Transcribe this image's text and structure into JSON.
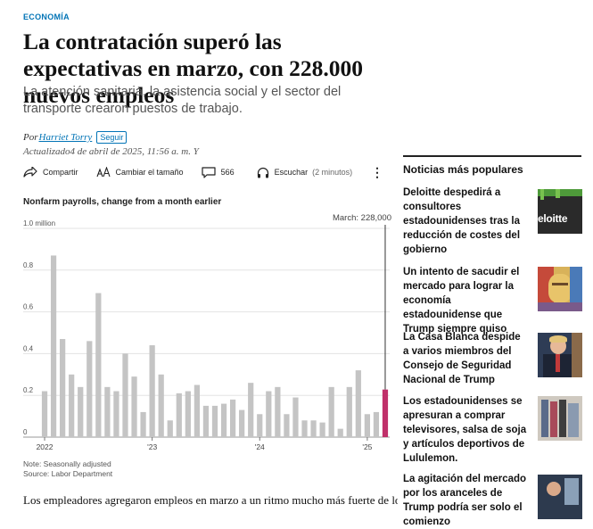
{
  "article": {
    "section": "ECONOMÍA",
    "headline": "La contratación superó las expectativas en marzo, con 228.000 nuevos empleos",
    "dek": "La atención sanitaria, la asistencia social y el sector del transporte crearon puestos de trabajo.",
    "byline_prefix": "Por",
    "author": "Harriet Torry",
    "follow_label": "Seguir",
    "updated": "Actualizado4 de abril de 2025, 11:56 a. m. Y",
    "body_first_line": "Los empleadores agregaron empleos en marzo a un ritmo mucho más fuerte de lo"
  },
  "toolbar": {
    "share_label": "Compartir",
    "text_size_label": "Cambiar el tamaño",
    "comment_count": "566",
    "listen_label": "Escuchar",
    "listen_duration": "(2 minutos)"
  },
  "chart_title": "Nonfarm payrolls, change from a month earlier",
  "chart_note": "Note: Seasonally adjusted",
  "chart_source": "Source: Labor Department",
  "chart_data": {
    "type": "bar",
    "title": "Nonfarm payrolls, change from a month earlier",
    "y_unit_label": "1.0 million",
    "ylim": [
      0,
      1.0
    ],
    "yticks": [
      0,
      0.2,
      0.4,
      0.6,
      0.8,
      1.0
    ],
    "ytick_labels": [
      "0",
      "0.2",
      "0.4",
      "0.6",
      "0.8",
      "1.0 million"
    ],
    "xtick_labels": [
      {
        "label": "2022",
        "index": 0
      },
      {
        "label": "'23",
        "index": 12
      },
      {
        "label": "'24",
        "index": 24
      },
      {
        "label": "'25",
        "index": 36
      }
    ],
    "values": [
      0.22,
      0.87,
      0.47,
      0.3,
      0.24,
      0.46,
      0.69,
      0.24,
      0.22,
      0.4,
      0.29,
      0.12,
      0.44,
      0.3,
      0.08,
      0.21,
      0.22,
      0.25,
      0.15,
      0.15,
      0.16,
      0.18,
      0.13,
      0.26,
      0.11,
      0.22,
      0.24,
      0.11,
      0.19,
      0.08,
      0.08,
      0.07,
      0.24,
      0.04,
      0.24,
      0.32,
      0.11,
      0.12,
      0.228
    ],
    "highlight_index": 38,
    "annotation": "March: 228,000",
    "grid": true,
    "colors": {
      "bar": "#c4c4c4",
      "highlight": "#c0306a",
      "grid": "#e3e3e3"
    }
  },
  "sidebar": {
    "title": "Noticias más populares",
    "items": [
      {
        "text": "Deloitte despedirá a consultores estadounidenses tras la reducción de costes del gobierno",
        "thumb_text": "eloitte"
      },
      {
        "text": "Un intento de sacudir el mercado para lograr la economía estadounidense que Trump siempre quiso"
      },
      {
        "text": "La Casa Blanca despide a varios miembros del Consejo de Seguridad Nacional de Trump"
      },
      {
        "text": "Los estadounidenses se apresuran a comprar televisores, salsa de soja y artículos deportivos de Lululemon."
      },
      {
        "text": "La agitación del mercado por los aranceles de Trump podría ser solo el comienzo"
      }
    ]
  },
  "colors": {
    "accent": "#0274b6",
    "highlight": "#c0306a"
  }
}
